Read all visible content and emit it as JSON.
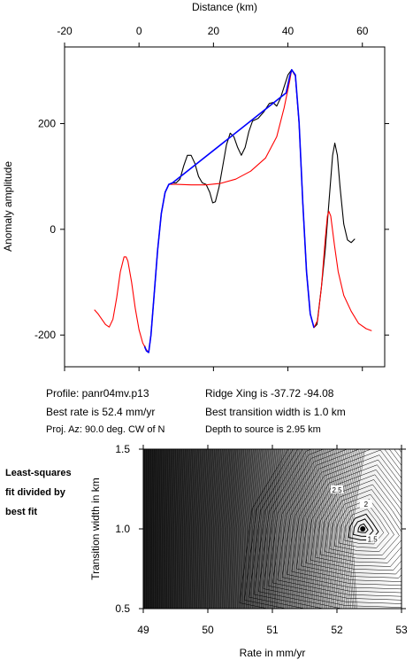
{
  "chart_data": [
    {
      "type": "line",
      "xlabel": "Distance (km)",
      "ylabel": "Anomaly amplitude",
      "xlim": [
        -20,
        66
      ],
      "ylim": [
        -260,
        345
      ],
      "xticks": [
        -20,
        0,
        20,
        40,
        60
      ],
      "yticks": [
        -200,
        0,
        200
      ],
      "series": [
        {
          "color": "#000000",
          "points": [
            [
              1.5,
              -220
            ],
            [
              2,
              -230
            ],
            [
              2.6,
              -233
            ],
            [
              3.2,
              -200
            ],
            [
              4,
              -130
            ],
            [
              5,
              -40
            ],
            [
              6,
              30
            ],
            [
              7,
              70
            ],
            [
              8,
              85
            ],
            [
              9,
              88
            ],
            [
              10,
              88
            ],
            [
              11,
              95
            ],
            [
              12,
              120
            ],
            [
              13,
              140
            ],
            [
              14,
              140
            ],
            [
              15,
              125
            ],
            [
              16,
              100
            ],
            [
              17,
              88
            ],
            [
              18,
              85
            ],
            [
              19,
              70
            ],
            [
              19.8,
              50
            ],
            [
              20.5,
              52
            ],
            [
              21.5,
              80
            ],
            [
              22.5,
              120
            ],
            [
              23.5,
              160
            ],
            [
              24.5,
              182
            ],
            [
              25.5,
              175
            ],
            [
              26.5,
              155
            ],
            [
              27.5,
              140
            ],
            [
              28.5,
              155
            ],
            [
              29.5,
              185
            ],
            [
              30.5,
              205
            ],
            [
              32,
              210
            ],
            [
              33.5,
              222
            ],
            [
              35,
              238
            ],
            [
              36,
              240
            ],
            [
              37,
              233
            ],
            [
              38,
              248
            ],
            [
              39,
              270
            ],
            [
              40,
              292
            ],
            [
              41,
              302
            ],
            [
              42,
              290
            ],
            [
              43,
              200
            ],
            [
              44,
              50
            ],
            [
              45,
              -80
            ],
            [
              46,
              -160
            ],
            [
              47,
              -186
            ],
            [
              47.8,
              -180
            ],
            [
              49,
              -110
            ],
            [
              50,
              -40
            ],
            [
              51,
              50
            ],
            [
              52,
              140
            ],
            [
              52.6,
              163
            ],
            [
              53.3,
              140
            ],
            [
              54,
              80
            ],
            [
              55,
              10
            ],
            [
              56,
              -20
            ],
            [
              57,
              -25
            ],
            [
              58,
              -18
            ]
          ]
        },
        {
          "color": "#ff0000",
          "points": [
            [
              -12,
              -152
            ],
            [
              -11,
              -160
            ],
            [
              -10,
              -170
            ],
            [
              -9,
              -180
            ],
            [
              -8,
              -185
            ],
            [
              -7,
              -170
            ],
            [
              -6,
              -130
            ],
            [
              -5,
              -80
            ],
            [
              -4,
              -52
            ],
            [
              -3.5,
              -52
            ],
            [
              -3,
              -60
            ],
            [
              -2,
              -100
            ],
            [
              -1,
              -150
            ],
            [
              0,
              -190
            ],
            [
              1,
              -215
            ],
            [
              2,
              -228
            ],
            [
              2.6,
              -233
            ],
            [
              3.2,
              -200
            ],
            [
              4,
              -130
            ],
            [
              5,
              -40
            ],
            [
              6,
              30
            ],
            [
              7,
              70
            ],
            [
              8,
              85
            ],
            [
              10,
              85
            ],
            [
              14,
              84
            ],
            [
              18,
              84
            ],
            [
              22,
              87
            ],
            [
              26,
              95
            ],
            [
              30,
              110
            ],
            [
              34,
              135
            ],
            [
              37,
              175
            ],
            [
              39,
              230
            ],
            [
              40.5,
              282
            ],
            [
              41,
              302
            ],
            [
              42,
              290
            ],
            [
              43,
              200
            ],
            [
              44,
              50
            ],
            [
              45,
              -80
            ],
            [
              46,
              -160
            ],
            [
              47,
              -186
            ],
            [
              48,
              -172
            ],
            [
              49,
              -110
            ],
            [
              50,
              -20
            ],
            [
              50.6,
              25
            ],
            [
              51,
              34
            ],
            [
              51.5,
              25
            ],
            [
              52.5,
              -30
            ],
            [
              53.5,
              -80
            ],
            [
              55,
              -125
            ],
            [
              57,
              -155
            ],
            [
              59,
              -178
            ],
            [
              61,
              -188
            ],
            [
              62.5,
              -192
            ]
          ]
        },
        {
          "color": "#0000ff",
          "points": [
            [
              1.5,
              -222
            ],
            [
              2,
              -230
            ],
            [
              2.6,
              -233
            ],
            [
              3.2,
              -200
            ],
            [
              4,
              -130
            ],
            [
              5,
              -40
            ],
            [
              6,
              30
            ],
            [
              7,
              70
            ],
            [
              8,
              85
            ],
            [
              9,
              88
            ],
            [
              39.5,
              258
            ],
            [
              40.5,
              290
            ],
            [
              41,
              302
            ],
            [
              42,
              292
            ],
            [
              43,
              202
            ],
            [
              44,
              50
            ],
            [
              45,
              -80
            ],
            [
              46,
              -160
            ],
            [
              47,
              -186
            ]
          ]
        }
      ]
    },
    {
      "type": "heatmap",
      "xlabel": "Rate in mm/yr",
      "ylabel": "Transition width in km",
      "xlim": [
        49,
        53
      ],
      "ylim": [
        0.5,
        1.5
      ],
      "xticks": [
        49,
        50,
        51,
        52,
        53
      ],
      "yticks": [
        0.5,
        1.0,
        1.5
      ],
      "best_fit_point": [
        52.4,
        1.0
      ],
      "contour_labels": [
        {
          "text": "2.5",
          "x": 52.0,
          "y": 1.24
        },
        {
          "text": "2",
          "x": 52.45,
          "y": 1.15
        },
        {
          "text": "1.5",
          "x": 52.55,
          "y": 0.93
        }
      ]
    }
  ],
  "info": {
    "profile": "Profile: panr04mv.p13",
    "best_rate": "Best rate is 52.4 mm/yr",
    "proj_az": "Proj. Az: 90.0 deg. CW of N",
    "ridge_xing": "Ridge Xing is -37.72 -94.08",
    "transition_width": "Best transition width is 1.0 km",
    "depth": "Depth to source is   2.95 km"
  },
  "note": {
    "line1": "Least-squares",
    "line2": "fit divided by",
    "line3": "best fit"
  }
}
